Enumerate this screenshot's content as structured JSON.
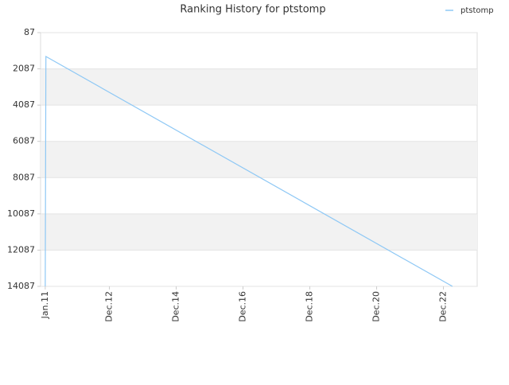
{
  "chart_data": {
    "type": "line",
    "title": "Ranking History for ptstomp",
    "x": [
      2011.0,
      2011.02,
      2023.19
    ],
    "series": [
      {
        "name": "ptstomp",
        "color": "#8ec8f5",
        "values": [
          14087,
          1404,
          14087
        ]
      }
    ],
    "xlim": [
      2010.86,
      2023.93
    ],
    "xticks": [
      {
        "value": 2011.0,
        "label": "Jan.11"
      },
      {
        "value": 2012.92,
        "label": "Dec.12"
      },
      {
        "value": 2014.92,
        "label": "Dec.14"
      },
      {
        "value": 2016.92,
        "label": "Dec.16"
      },
      {
        "value": 2018.92,
        "label": "Dec.18"
      },
      {
        "value": 2020.92,
        "label": "Dec.20"
      },
      {
        "value": 2022.92,
        "label": "Dec.22"
      }
    ],
    "ylim": [
      87,
      14087
    ],
    "y_inverted": true,
    "yticks": [
      87,
      2087,
      4087,
      6087,
      8087,
      10087,
      12087,
      14087
    ],
    "grid": true,
    "legend": "top-right"
  }
}
